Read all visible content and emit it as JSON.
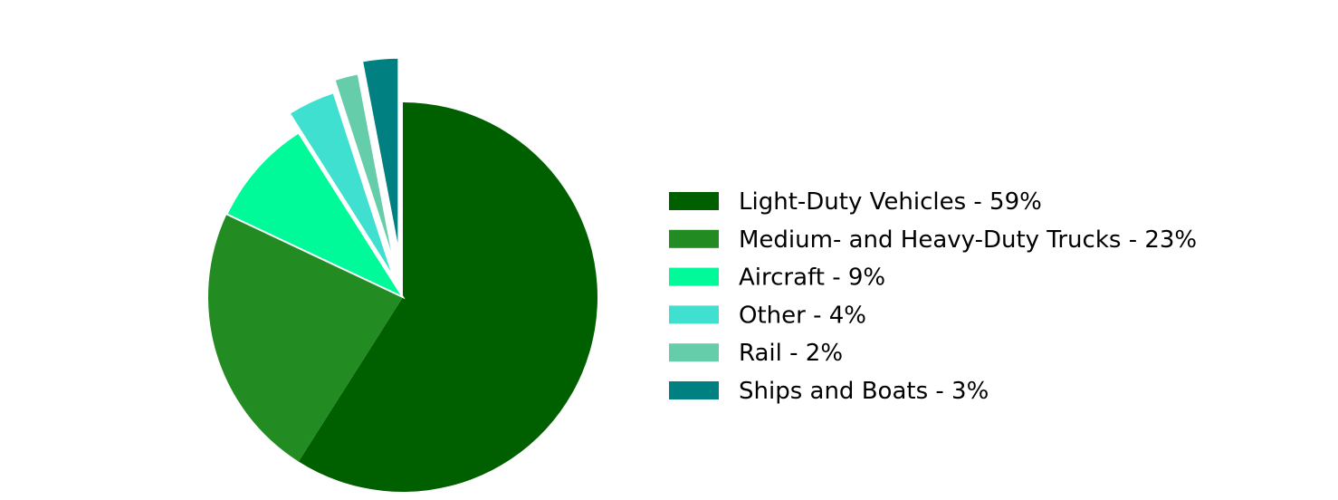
{
  "chart_data": {
    "type": "pie",
    "title": "",
    "start_angle_deg": 90,
    "direction": "clockwise",
    "legend_position": "right",
    "slices": [
      {
        "label": "Light-Duty Vehicles - 59%",
        "value": 59,
        "color": "#006000",
        "exploded": false
      },
      {
        "label": "Medium- and Heavy-Duty Trucks - 23%",
        "value": 23,
        "color": "#228B22",
        "exploded": false
      },
      {
        "label": "Aircraft - 9%",
        "value": 9,
        "color": "#00FA9A",
        "exploded": false
      },
      {
        "label": "Other - 4%",
        "value": 4,
        "color": "#40E0D0",
        "exploded": true
      },
      {
        "label": "Rail - 2%",
        "value": 2,
        "color": "#66CDAA",
        "exploded": true
      },
      {
        "label": "Ships and Boats - 3%",
        "value": 3,
        "color": "#008080",
        "exploded": true
      }
    ]
  }
}
